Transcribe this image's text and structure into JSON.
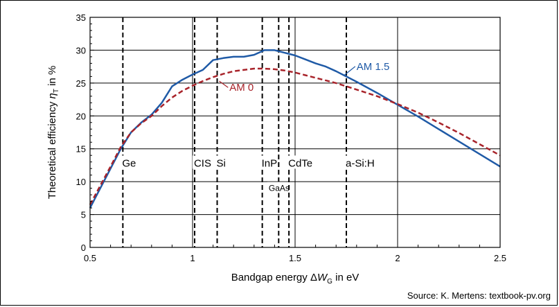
{
  "source_note": "Source: K. Mertens: textbook-pv.org",
  "chart_data": {
    "type": "line",
    "title": "",
    "xlabel": "Bandgap energy ΔW_G in eV",
    "ylabel": "Theoretical efficiency η_T in %",
    "xlim": [
      0.5,
      2.5
    ],
    "ylim": [
      0,
      35
    ],
    "x_ticks": [
      {
        "v": 0.5,
        "t": "0.5"
      },
      {
        "v": 1,
        "t": "1"
      },
      {
        "v": 1.5,
        "t": "1.5"
      },
      {
        "v": 2,
        "t": "2"
      },
      {
        "v": 2.5,
        "t": "2.5"
      }
    ],
    "y_ticks": [
      {
        "v": 0,
        "t": "0"
      },
      {
        "v": 5,
        "t": "5"
      },
      {
        "v": 10,
        "t": "10"
      },
      {
        "v": 15,
        "t": "15"
      },
      {
        "v": 20,
        "t": "20"
      },
      {
        "v": 25,
        "t": "25"
      },
      {
        "v": 30,
        "t": "30"
      },
      {
        "v": 35,
        "t": "35"
      }
    ],
    "grid": true,
    "series": [
      {
        "name": "AM 1.5",
        "color": "#1f5aa6",
        "style": "solid",
        "label_at": [
          1.8,
          27.0
        ],
        "pointer_to": [
          1.74,
          26.2
        ],
        "x": [
          0.5,
          0.55,
          0.6,
          0.65,
          0.7,
          0.75,
          0.8,
          0.85,
          0.9,
          0.95,
          1.0,
          1.05,
          1.1,
          1.15,
          1.2,
          1.25,
          1.3,
          1.35,
          1.4,
          1.45,
          1.5,
          1.55,
          1.6,
          1.65,
          1.7,
          1.75,
          1.8,
          1.9,
          2.0,
          2.1,
          2.2,
          2.3,
          2.4,
          2.5
        ],
        "y": [
          6.0,
          9.0,
          12.0,
          15.0,
          17.5,
          19.0,
          20.2,
          22.0,
          24.5,
          25.5,
          26.3,
          27.0,
          28.5,
          28.8,
          29.0,
          29.0,
          29.3,
          30.0,
          30.0,
          29.6,
          29.2,
          28.6,
          28.0,
          27.5,
          26.8,
          26.0,
          25.2,
          23.5,
          21.7,
          19.9,
          18.0,
          16.1,
          14.2,
          12.3
        ]
      },
      {
        "name": "AM 0",
        "color": "#a8232a",
        "style": "dashed",
        "label_at": [
          1.18,
          23.8
        ],
        "pointer_to": [
          1.13,
          25.3
        ],
        "x": [
          0.5,
          0.55,
          0.6,
          0.65,
          0.7,
          0.75,
          0.8,
          0.85,
          0.9,
          0.95,
          1.0,
          1.05,
          1.1,
          1.15,
          1.2,
          1.25,
          1.3,
          1.35,
          1.4,
          1.45,
          1.5,
          1.55,
          1.6,
          1.65,
          1.7,
          1.75,
          1.8,
          1.9,
          2.0,
          2.1,
          2.2,
          2.3,
          2.4,
          2.5
        ],
        "y": [
          6.5,
          9.4,
          12.3,
          15.3,
          17.5,
          18.9,
          20.0,
          21.5,
          22.8,
          23.8,
          24.6,
          25.3,
          25.9,
          26.4,
          26.8,
          27.0,
          27.2,
          27.2,
          27.1,
          26.9,
          26.6,
          26.2,
          25.8,
          25.4,
          25.0,
          24.5,
          24.0,
          23.0,
          21.8,
          20.5,
          19.0,
          17.4,
          15.7,
          14.0
        ]
      }
    ],
    "materials": [
      {
        "label": "Ge",
        "x": 0.66,
        "label_y": 12.5
      },
      {
        "label": "CIS",
        "x": 1.01,
        "label_y": 12.5
      },
      {
        "label": "Si",
        "x": 1.12,
        "label_y": 12.5
      },
      {
        "label": "InP",
        "x": 1.34,
        "label_y": 12.5
      },
      {
        "label": "GaAs",
        "x": 1.42,
        "label_y": 8.8
      },
      {
        "label": "CdTe",
        "x": 1.47,
        "label_y": 12.5
      },
      {
        "label": "a-Si:H",
        "x": 1.75,
        "label_y": 12.5
      }
    ]
  }
}
